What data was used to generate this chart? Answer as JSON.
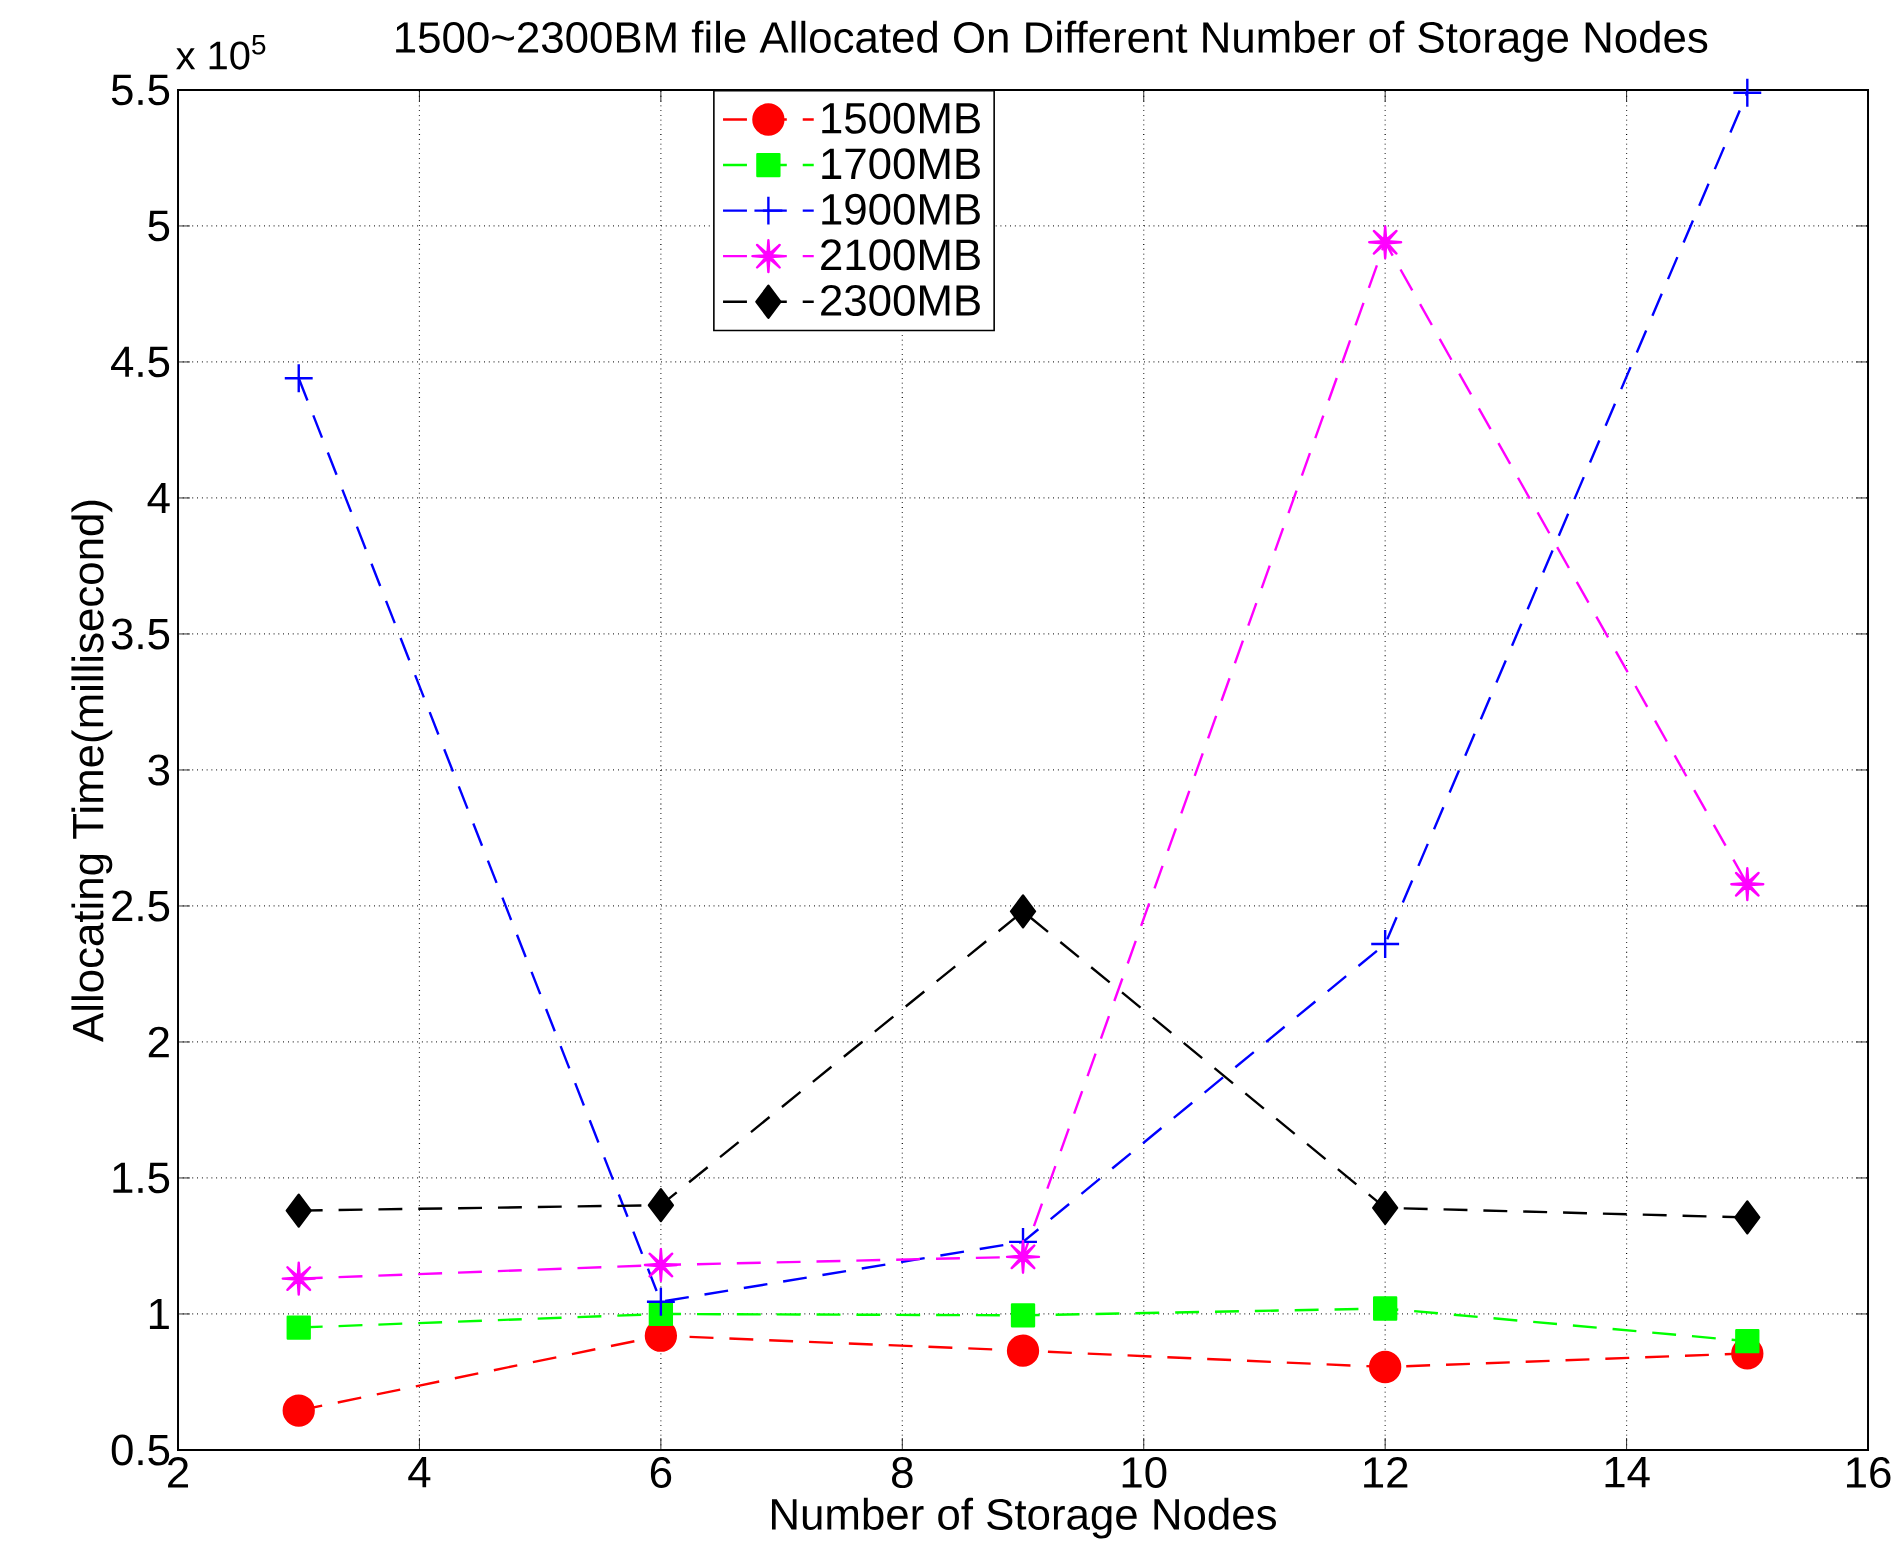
{
  "chart_data": {
    "type": "line",
    "title": "1500~2300BM file Allocated On Different Number of Storage Nodes",
    "xlabel": "Number of Storage Nodes",
    "ylabel": "Allocating Time(millisecond)",
    "annotations": [
      "x 10$^{5}$"
    ],
    "x": [
      3,
      6,
      9,
      12,
      15
    ],
    "series": [
      {
        "name": "1500MB",
        "color": "#ff0000",
        "marker": "circle",
        "values": [
          0.645,
          0.92,
          0.865,
          0.805,
          0.855
        ]
      },
      {
        "name": "1700MB",
        "color": "#00ff00",
        "marker": "square",
        "values": [
          0.95,
          1.0,
          0.995,
          1.02,
          0.9
        ]
      },
      {
        "name": "1900MB",
        "color": "#0000ff",
        "marker": "cross",
        "values": [
          4.44,
          1.045,
          1.265,
          2.36,
          5.49
        ]
      },
      {
        "name": "2100MB",
        "color": "#ff00ff",
        "marker": "star",
        "values": [
          1.13,
          1.18,
          1.21,
          4.94,
          2.58
        ]
      },
      {
        "name": "2300MB",
        "color": "#000000",
        "marker": "diamond",
        "values": [
          1.38,
          1.4,
          2.48,
          1.39,
          1.355
        ]
      }
    ],
    "xlim": [
      2,
      16
    ],
    "xticks": [
      2,
      4,
      6,
      8,
      10,
      12,
      14,
      16
    ],
    "ylim": [
      0.5,
      5.5
    ],
    "yticks": [
      0.5,
      1,
      1.5,
      2,
      2.5,
      3,
      3.5,
      4,
      4.5,
      5,
      5.5
    ],
    "grid": true,
    "legend": "top",
    "line_style": "dashed"
  }
}
